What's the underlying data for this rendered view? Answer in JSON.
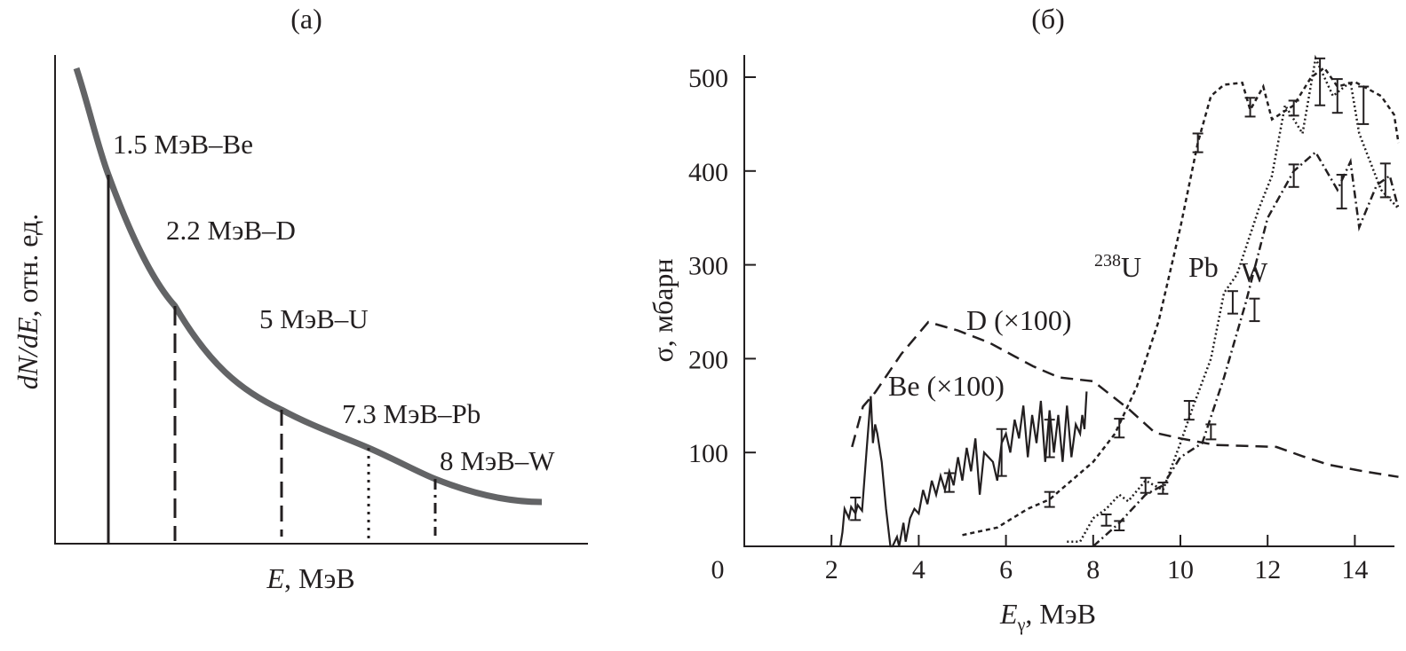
{
  "chart_data": [
    {
      "type": "line",
      "panel_label": "(a)",
      "xlabel_italic": "E",
      "xlabel_rest": ", МэВ",
      "ylabel_italic": "dN/dE",
      "ylabel_rest": ", отн. ед.",
      "grid": false,
      "curve_color": "#636466",
      "markers": [
        {
          "label": "1.5 МэВ–Be",
          "style": "solid"
        },
        {
          "label": "2.2 МэВ–D",
          "style": "dashed"
        },
        {
          "label": "5 МэВ–U",
          "style": "dashed"
        },
        {
          "label": "7.3 МэВ–Pb",
          "style": "dotted"
        },
        {
          "label": "8 МэВ–W",
          "style": "dash-dot"
        }
      ]
    },
    {
      "type": "line",
      "panel_label": "(б)",
      "xlabel": "E",
      "xlabel_sub": "γ",
      "xlabel_rest": ", МэВ",
      "ylabel": "σ, мбарн",
      "xlim": [
        0,
        15
      ],
      "ylim": [
        0,
        500
      ],
      "xticks": [
        0,
        2,
        4,
        6,
        8,
        10,
        12,
        14
      ],
      "yticks": [
        100,
        200,
        300,
        400,
        500
      ],
      "grid": false,
      "series": [
        {
          "name": "D (×100)",
          "style": "long-dash",
          "x": [
            2.47,
            2.72,
            3.0,
            3.6,
            4.22,
            4.9,
            5.62,
            6.62,
            7.22,
            8.0,
            8.82,
            9.42,
            10.0,
            10.8,
            12.2,
            12.8,
            13.4,
            14.2,
            15.0
          ],
          "y": [
            106,
            149,
            164,
            205,
            239,
            230,
            217,
            192,
            180,
            176,
            146,
            121,
            115,
            108,
            106,
            96,
            87,
            80,
            74
          ],
          "errors": []
        },
        {
          "name": "Be (×100)",
          "style": "solid",
          "x": [
            2.2,
            2.25,
            2.3,
            2.4,
            2.45,
            2.55,
            2.6,
            2.7,
            2.8,
            2.9,
            2.95,
            3.0,
            3.05,
            3.15,
            3.25,
            3.35,
            3.4,
            3.5,
            3.55,
            3.65,
            3.7,
            3.8,
            3.9,
            4.0,
            4.1,
            4.2,
            4.3,
            4.4,
            4.5,
            4.6,
            4.7,
            4.8,
            4.9,
            5.0,
            5.1,
            5.2,
            5.3,
            5.4,
            5.5,
            5.6,
            5.7,
            5.8,
            5.9,
            6.0,
            6.1,
            6.2,
            6.3,
            6.4,
            6.5,
            6.6,
            6.7,
            6.8,
            6.9,
            7.0,
            7.1,
            7.2,
            7.3,
            7.4,
            7.5,
            7.6,
            7.7,
            7.75,
            7.8,
            7.85
          ],
          "y": [
            0,
            15,
            40,
            30,
            42,
            35,
            44,
            38,
            100,
            160,
            110,
            130,
            120,
            90,
            40,
            0,
            0,
            10,
            0,
            25,
            5,
            30,
            40,
            35,
            60,
            45,
            70,
            55,
            75,
            60,
            80,
            65,
            95,
            70,
            105,
            80,
            115,
            55,
            100,
            95,
            90,
            70,
            110,
            120,
            100,
            135,
            115,
            150,
            95,
            140,
            110,
            155,
            90,
            145,
            100,
            140,
            90,
            150,
            95,
            130,
            120,
            140,
            125,
            165
          ],
          "errors": [
            {
              "x": 2.55,
              "y": 40,
              "e": 12
            },
            {
              "x": 4.7,
              "y": 68,
              "e": 10
            },
            {
              "x": 5.9,
              "y": 100,
              "e": 25
            },
            {
              "x": 7.0,
              "y": 115,
              "e": 20
            }
          ]
        },
        {
          "name": "238U",
          "style": "short-dash",
          "x": [
            5.0,
            5.8,
            6.5,
            7.0,
            7.5,
            8.0,
            8.5,
            9.0,
            9.5,
            10.0,
            10.4,
            10.7,
            11.0,
            11.42,
            11.6,
            11.9,
            12.1,
            12.6,
            13.0,
            13.3,
            13.6,
            14.0,
            14.6,
            14.9,
            15.0
          ],
          "y": [
            12,
            20,
            40,
            50,
            70,
            90,
            120,
            170,
            240,
            340,
            430,
            480,
            492,
            494,
            465,
            490,
            455,
            470,
            500,
            510,
            490,
            495,
            480,
            460,
            430
          ],
          "errors": [
            {
              "x": 7.0,
              "y": 50,
              "e": 8
            },
            {
              "x": 8.6,
              "y": 126,
              "e": 10
            },
            {
              "x": 10.4,
              "y": 430,
              "e": 10
            },
            {
              "x": 11.6,
              "y": 468,
              "e": 10
            },
            {
              "x": 12.6,
              "y": 467,
              "e": 8
            },
            {
              "x": 13.6,
              "y": 480,
              "e": 18
            }
          ]
        },
        {
          "name": "Pb",
          "style": "dotted",
          "x": [
            7.4,
            7.7,
            8.0,
            8.3,
            8.6,
            8.8,
            9.2,
            9.6,
            10.0,
            10.3,
            10.7,
            11.0,
            11.3,
            11.8,
            12.1,
            12.4,
            12.8,
            13.1,
            13.5,
            13.9,
            14.1,
            14.6,
            15.0
          ],
          "y": [
            5,
            5,
            30,
            40,
            55,
            48,
            70,
            60,
            110,
            150,
            200,
            270,
            290,
            360,
            395,
            470,
            440,
            520,
            480,
            495,
            440,
            380,
            360
          ],
          "errors": [
            {
              "x": 8.3,
              "y": 28,
              "e": 6
            },
            {
              "x": 9.2,
              "y": 65,
              "e": 8
            },
            {
              "x": 10.2,
              "y": 145,
              "e": 10
            },
            {
              "x": 11.2,
              "y": 260,
              "e": 12
            },
            {
              "x": 13.2,
              "y": 495,
              "e": 25
            },
            {
              "x": 14.2,
              "y": 470,
              "e": 20
            }
          ]
        },
        {
          "name": "W",
          "style": "dash-dot",
          "x": [
            8.0,
            8.6,
            9.2,
            9.6,
            10.0,
            10.5,
            11.0,
            11.5,
            12.0,
            12.6,
            13.1,
            13.6,
            13.9,
            14.1,
            14.5,
            14.8,
            15.0
          ],
          "y": [
            0,
            25,
            55,
            65,
            95,
            110,
            180,
            260,
            350,
            400,
            420,
            380,
            410,
            340,
            385,
            395,
            360
          ],
          "errors": [
            {
              "x": 8.6,
              "y": 22,
              "e": 5
            },
            {
              "x": 9.6,
              "y": 62,
              "e": 6
            },
            {
              "x": 10.7,
              "y": 122,
              "e": 8
            },
            {
              "x": 11.7,
              "y": 252,
              "e": 12
            },
            {
              "x": 12.6,
              "y": 395,
              "e": 12
            },
            {
              "x": 13.7,
              "y": 378,
              "e": 18
            },
            {
              "x": 14.7,
              "y": 390,
              "e": 18
            }
          ]
        }
      ],
      "annotations": [
        {
          "text_sup": "238",
          "text": "U",
          "series": "238U"
        },
        {
          "text": "Pb",
          "series": "Pb"
        },
        {
          "text": "W",
          "series": "W"
        },
        {
          "text": "D (×100)",
          "series": "D (×100)"
        },
        {
          "text": "Be (×100)",
          "series": "Be (×100)"
        }
      ]
    }
  ]
}
